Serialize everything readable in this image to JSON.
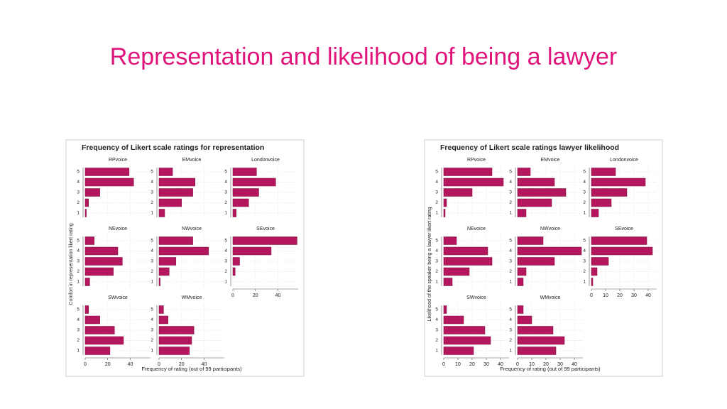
{
  "title": "Representation and likelihood of being a lawyer",
  "chart_data": [
    {
      "type": "bar",
      "orientation": "horizontal",
      "title": "Frequency of Likert scale ratings for representation",
      "xlabel": "Frequency of rating (out of 99 participants)",
      "ylabel": "Comfort in representation likert rating",
      "categories": [
        "1",
        "2",
        "3",
        "4",
        "5"
      ],
      "color": "#b5175f",
      "xlim": [
        0,
        58
      ],
      "xticks": [
        0,
        20,
        40
      ],
      "grid": true,
      "facets": [
        {
          "name": "RPvoice",
          "values": [
            1,
            3,
            13,
            43,
            39
          ]
        },
        {
          "name": "EMvoice",
          "values": [
            5,
            20,
            30,
            32,
            12
          ]
        },
        {
          "name": "Londonvoice",
          "values": [
            3,
            14,
            23,
            38,
            21
          ]
        },
        {
          "name": "NEvoice",
          "values": [
            4,
            25,
            33,
            29,
            8
          ]
        },
        {
          "name": "NWvoice",
          "values": [
            1,
            9,
            15,
            44,
            30
          ]
        },
        {
          "name": "SEvoice",
          "values": [
            0,
            2,
            6,
            34,
            57
          ]
        },
        {
          "name": "SWvoice",
          "values": [
            22,
            34,
            26,
            13,
            3
          ]
        },
        {
          "name": "WMvoice",
          "values": [
            27,
            29,
            31,
            8,
            4
          ]
        }
      ]
    },
    {
      "type": "bar",
      "orientation": "horizontal",
      "title": "Frequency of Likert scale ratings lawyer likelihood",
      "xlabel": "Frequency of rating (out of 99 participants)",
      "ylabel": "Likelihood of the speaker being a lawyer likert rating",
      "categories": [
        "1",
        "2",
        "3",
        "4",
        "5"
      ],
      "color": "#b5175f",
      "xlim": [
        0,
        46
      ],
      "xticks": [
        0,
        10,
        20,
        30,
        40
      ],
      "grid": true,
      "facets": [
        {
          "name": "RPvoice",
          "values": [
            1,
            2,
            20,
            42,
            34
          ]
        },
        {
          "name": "EMvoice",
          "values": [
            6,
            24,
            34,
            26,
            9
          ]
        },
        {
          "name": "Londonvoice",
          "values": [
            5,
            14,
            25,
            38,
            17
          ]
        },
        {
          "name": "NEvoice",
          "values": [
            6,
            18,
            34,
            31,
            9
          ]
        },
        {
          "name": "NWvoice",
          "values": [
            4,
            6,
            26,
            45,
            18
          ]
        },
        {
          "name": "SEvoice",
          "values": [
            1,
            4,
            12,
            43,
            39
          ]
        },
        {
          "name": "SWvoice",
          "values": [
            21,
            33,
            29,
            14,
            2
          ]
        },
        {
          "name": "WMvoice",
          "values": [
            27,
            33,
            25,
            10,
            4
          ]
        }
      ]
    }
  ]
}
